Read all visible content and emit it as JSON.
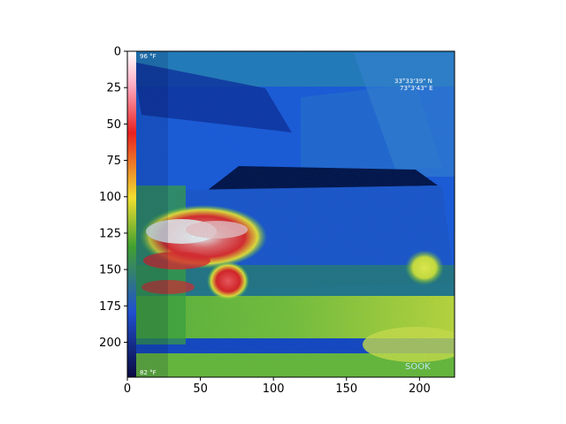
{
  "figure": {
    "x_ticks": [
      "0",
      "50",
      "100",
      "150",
      "200"
    ],
    "y_ticks": [
      "0",
      "25",
      "50",
      "75",
      "100",
      "125",
      "150",
      "175",
      "200"
    ],
    "x_tick_values": [
      0,
      50,
      100,
      150,
      200
    ],
    "y_tick_values": [
      0,
      25,
      50,
      75,
      100,
      125,
      150,
      175,
      200
    ],
    "x_range": [
      0,
      224
    ],
    "y_range": [
      0,
      224
    ],
    "y_inverted": true
  },
  "image": {
    "description_kind": "thermal camera image of a car",
    "palette": {
      "cold": "#0b1a8a",
      "cool": "#1f5fe0",
      "mid": "#2f9a3a",
      "warm": "#e8e83a",
      "hot": "#e8201a",
      "hottest": "#f4f4f4"
    },
    "overlay": {
      "temp_top": "96 °F",
      "temp_bottom": "82 °F",
      "gps_lat": "33°33'39\" N",
      "gps_lon": "73°3'43\" E",
      "logo": "SOOK"
    }
  }
}
